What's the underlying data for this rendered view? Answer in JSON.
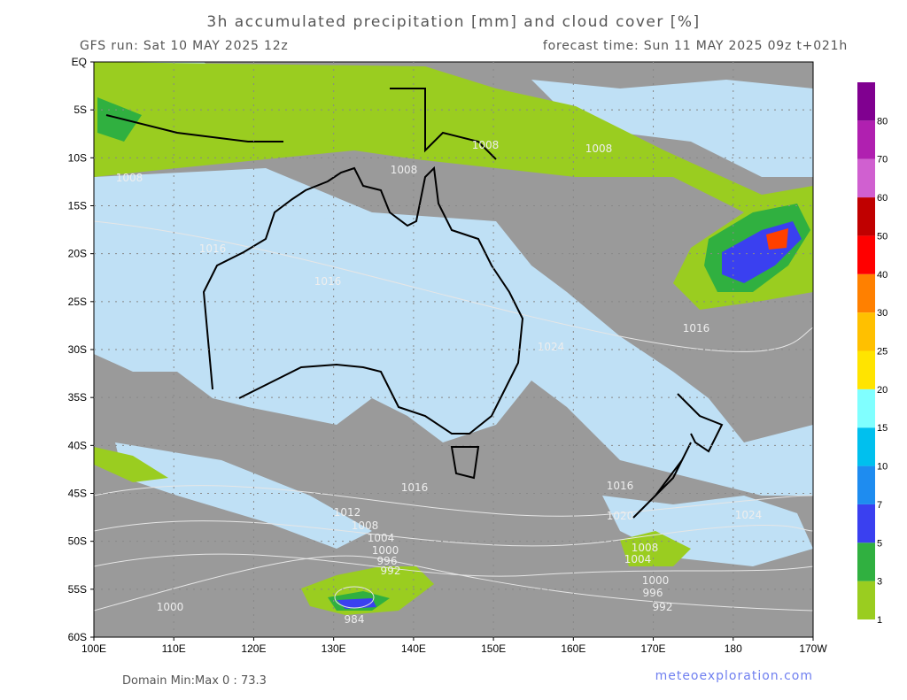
{
  "header": {
    "title": "3h accumulated precipitation [mm] and cloud cover [%]",
    "run": "GFS run: Sat 10 MAY 2025 12z",
    "forecast": "forecast time: Sun 11 MAY 2025 09z  t+021h"
  },
  "map": {
    "lat_labels": [
      "EQ",
      "5S",
      "10S",
      "15S",
      "20S",
      "25S",
      "30S",
      "35S",
      "40S",
      "45S",
      "50S",
      "55S",
      "60S"
    ],
    "lon_labels": [
      "100E",
      "110E",
      "120E",
      "130E",
      "140E",
      "150E",
      "160E",
      "170E",
      "180",
      "170W"
    ],
    "isobar_labels": [
      "1008",
      "1008",
      "1008",
      "1008",
      "1016",
      "1016",
      "1024",
      "1016",
      "1016",
      "1012",
      "1008",
      "1004",
      "1000",
      "996",
      "992",
      "984",
      "1000",
      "1016",
      "1008",
      "1004",
      "1000",
      "996",
      "992",
      "1024",
      "1020"
    ]
  },
  "colorbar": {
    "labels": [
      "1",
      "3",
      "5",
      "7",
      "10",
      "15",
      "20",
      "25",
      "30",
      "40",
      "50",
      "60",
      "70",
      "80"
    ],
    "colors": [
      "#9acd20",
      "#30b040",
      "#3a40f0",
      "#1e8cf0",
      "#00c0ee",
      "#80ffff",
      "#ffe400",
      "#ffc000",
      "#ff8000",
      "#ff0000",
      "#c00000",
      "#d060d0",
      "#b020b0",
      "#800090"
    ]
  },
  "footer": {
    "domain": "Domain Min:Max 0 : 73.3",
    "site": "meteoexploration.com"
  }
}
